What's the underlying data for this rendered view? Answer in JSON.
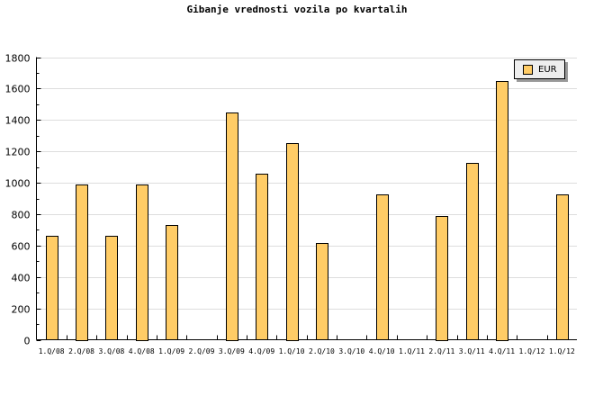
{
  "chart_data": {
    "type": "bar",
    "title": "Gibanje vrednosti vozila po kvartalih",
    "categories": [
      "1.Q/08",
      "2.Q/08",
      "3.Q/08",
      "4.Q/08",
      "1.Q/09",
      "2.Q/09",
      "3.Q/09",
      "4.Q/09",
      "1.Q/10",
      "2.Q/10",
      "3.Q/10",
      "4.Q/10",
      "1.Q/11",
      "2.Q/11",
      "3.Q/11",
      "4.Q/11",
      "1.Q/12",
      "1.Q/12"
    ],
    "series": [
      {
        "name": "EUR",
        "color": "#ffcc66",
        "values": [
          660,
          990,
          660,
          990,
          730,
          0,
          1450,
          1055,
          1255,
          615,
          0,
          925,
          0,
          790,
          1125,
          1650,
          0,
          925
        ]
      }
    ],
    "ylim": [
      0,
      1800
    ],
    "yticks": [
      0,
      200,
      400,
      600,
      800,
      1000,
      1200,
      1400,
      1600,
      1800
    ],
    "grid": true,
    "legend_placement": "top-right"
  }
}
